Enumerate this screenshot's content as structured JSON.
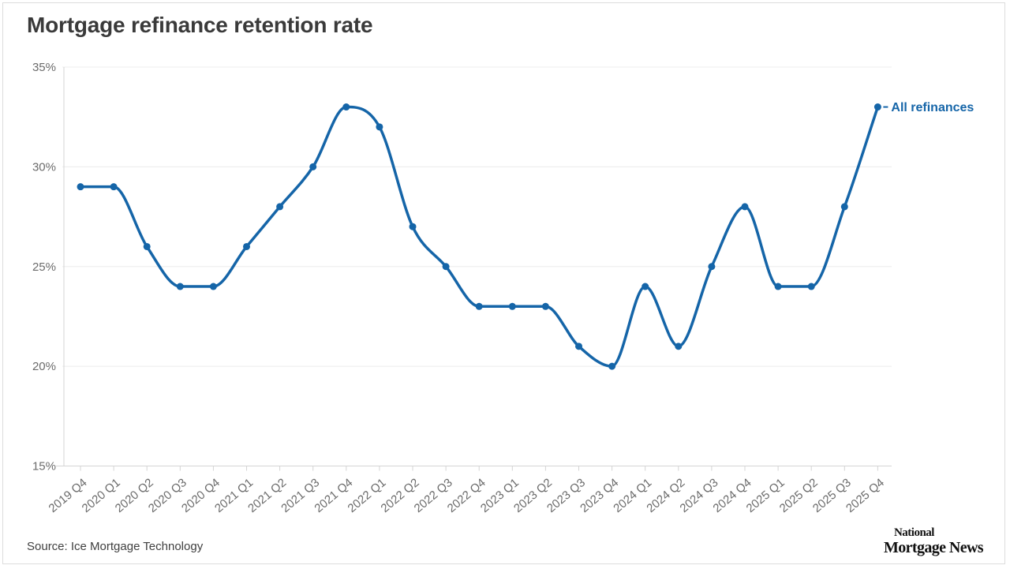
{
  "title": "Mortgage refinance retention rate",
  "source": "Source: Ice Mortgage Technology",
  "logo": {
    "line1": "National",
    "line2": "Mortgage News"
  },
  "colors": {
    "line": "#1565a8",
    "grid": "#ececec",
    "axis": "#d4d4d4",
    "tick_text": "#6b6b6b",
    "title_text": "#3a3a3a",
    "background": "#ffffff"
  },
  "chart_data": {
    "type": "line",
    "title": "Mortgage refinance retention rate",
    "xlabel": "",
    "ylabel": "",
    "categories": [
      "2019 Q4",
      "2020 Q1",
      "2020 Q2",
      "2020 Q3",
      "2020 Q4",
      "2021 Q1",
      "2021 Q2",
      "2021 Q3",
      "2021 Q4",
      "2022 Q1",
      "2022 Q2",
      "2022 Q3",
      "2022 Q4",
      "2023 Q1",
      "2023 Q2",
      "2023 Q3",
      "2023 Q4",
      "2024 Q1",
      "2024 Q2",
      "2024 Q3",
      "2024 Q4",
      "2025 Q1",
      "2025 Q2",
      "2025 Q3",
      "2025 Q4"
    ],
    "series": [
      {
        "name": "All refinances",
        "values": [
          29,
          29,
          26,
          24,
          24,
          26,
          28,
          30,
          33,
          32,
          27,
          25,
          23,
          23,
          23,
          21,
          20,
          24,
          21,
          25,
          28,
          24,
          24,
          28,
          33
        ]
      }
    ],
    "ylim": [
      15,
      35
    ],
    "yticks": [
      35,
      30,
      25,
      20,
      15
    ],
    "ytick_format": "{v}%",
    "grid": "horizontal",
    "legend_position": "end-of-line",
    "marker": "circle"
  }
}
